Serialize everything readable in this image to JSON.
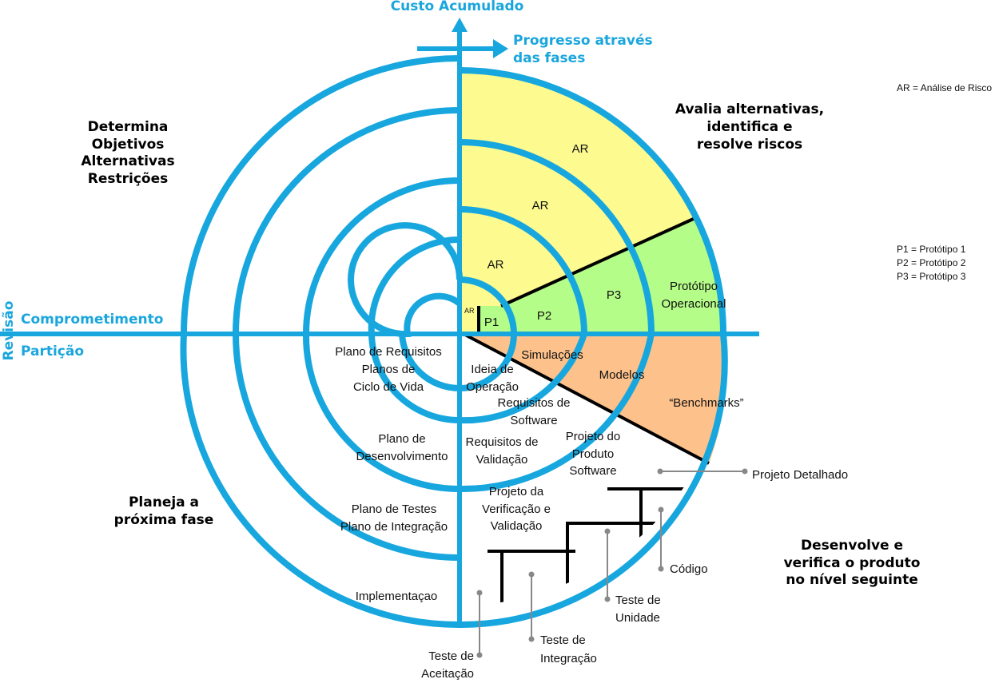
{
  "axes": {
    "vertical": "Custo Acumulado",
    "progress_line1": "Progresso através",
    "progress_line2": "das fases",
    "left_top": "Comprometimento",
    "left_bottom": "Partição",
    "side": "Revisão"
  },
  "quadrants": {
    "top_left": [
      "Determina",
      "Objetivos",
      "Alternativas",
      "Restrições"
    ],
    "top_right": [
      "Avalia alternativas,",
      "identifica e",
      "resolve riscos"
    ],
    "bottom_left": [
      "Planeja a",
      "próxima fase"
    ],
    "bottom_right": [
      "Desenvolve e",
      "verifica o produto",
      "no nível seguinte"
    ]
  },
  "legend": {
    "risk": "AR = Análise de Risco",
    "p1": "P1 = Protótipo 1",
    "p2": "P2 = Protótipo 2",
    "p3": "P3 = Protótipo 3"
  },
  "risk_labels": {
    "ar0": "AR",
    "ar1": "AR",
    "ar2": "AR",
    "ar3": "AR"
  },
  "prototypes": {
    "p1": "P1",
    "p2": "P2",
    "p3": "P3",
    "op1": "Protótipo",
    "op2": "Operacional"
  },
  "simulations": {
    "sim": "Simulações",
    "models": "Modelos",
    "bench": "“Benchmarks”"
  },
  "plans": {
    "req1": "Plano de Requisitos",
    "req2": "Planos de",
    "req3": "Ciclo de Vida",
    "dev1": "Plano de",
    "dev2": "Desenvolvimento",
    "test1": "Plano de Testes",
    "test2": "Plano de Integração",
    "impl": "Implementaçao"
  },
  "phases": {
    "idea1": "Ideia de",
    "idea2": "Operação",
    "swreq1": "Requisitos de",
    "swreq2": "Software",
    "valreq1": "Requisitos de",
    "valreq2": "Validação",
    "design1": "Projeto do",
    "design2": "Produto",
    "design3": "Software",
    "verif1": "Projeto da",
    "verif2": "Verificação e",
    "verif3": "Validação"
  },
  "development": {
    "detail": "Projeto Detalhado",
    "code": "Código",
    "unit1": "Teste de",
    "unit2": "Unidade",
    "integ1": "Teste de",
    "integ2": "Integração",
    "accept1": "Teste de",
    "accept2": "Aceitação"
  },
  "colors": {
    "spiral": "#17a7de",
    "risk_fill": "#fdfb8f",
    "prototype_fill": "#b4fd88",
    "simulation_fill": "#fdc18b",
    "axis_text": "#1aa6dc"
  }
}
